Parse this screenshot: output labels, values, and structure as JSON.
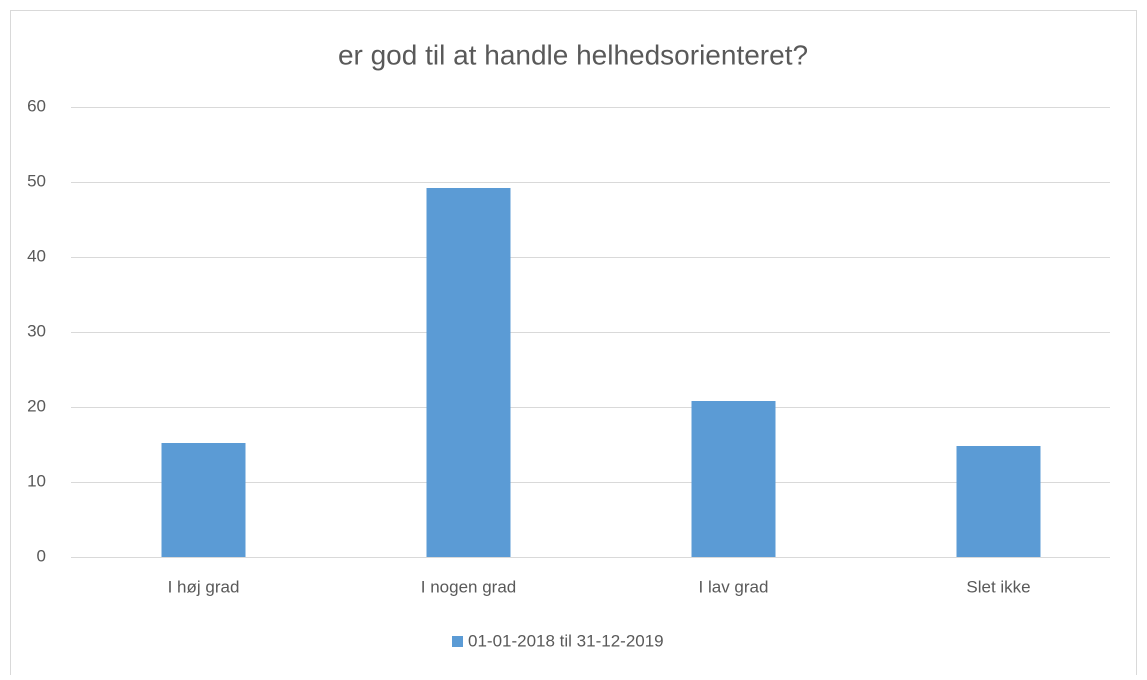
{
  "chart_data": {
    "type": "bar",
    "title": "er god til at handle helhedsorienteret?",
    "categories": [
      "I høj grad",
      "I nogen grad",
      "I lav grad",
      "Slet ikke"
    ],
    "series": [
      {
        "name": "01-01-2018 til 31-12-2019",
        "color": "#5b9bd5",
        "values": [
          15.2,
          49.2,
          20.8,
          14.8
        ]
      }
    ],
    "ylim": [
      0,
      60
    ],
    "yticks": [
      0,
      10,
      20,
      30,
      40,
      50,
      60
    ],
    "grid": true,
    "legend": "bottom"
  }
}
